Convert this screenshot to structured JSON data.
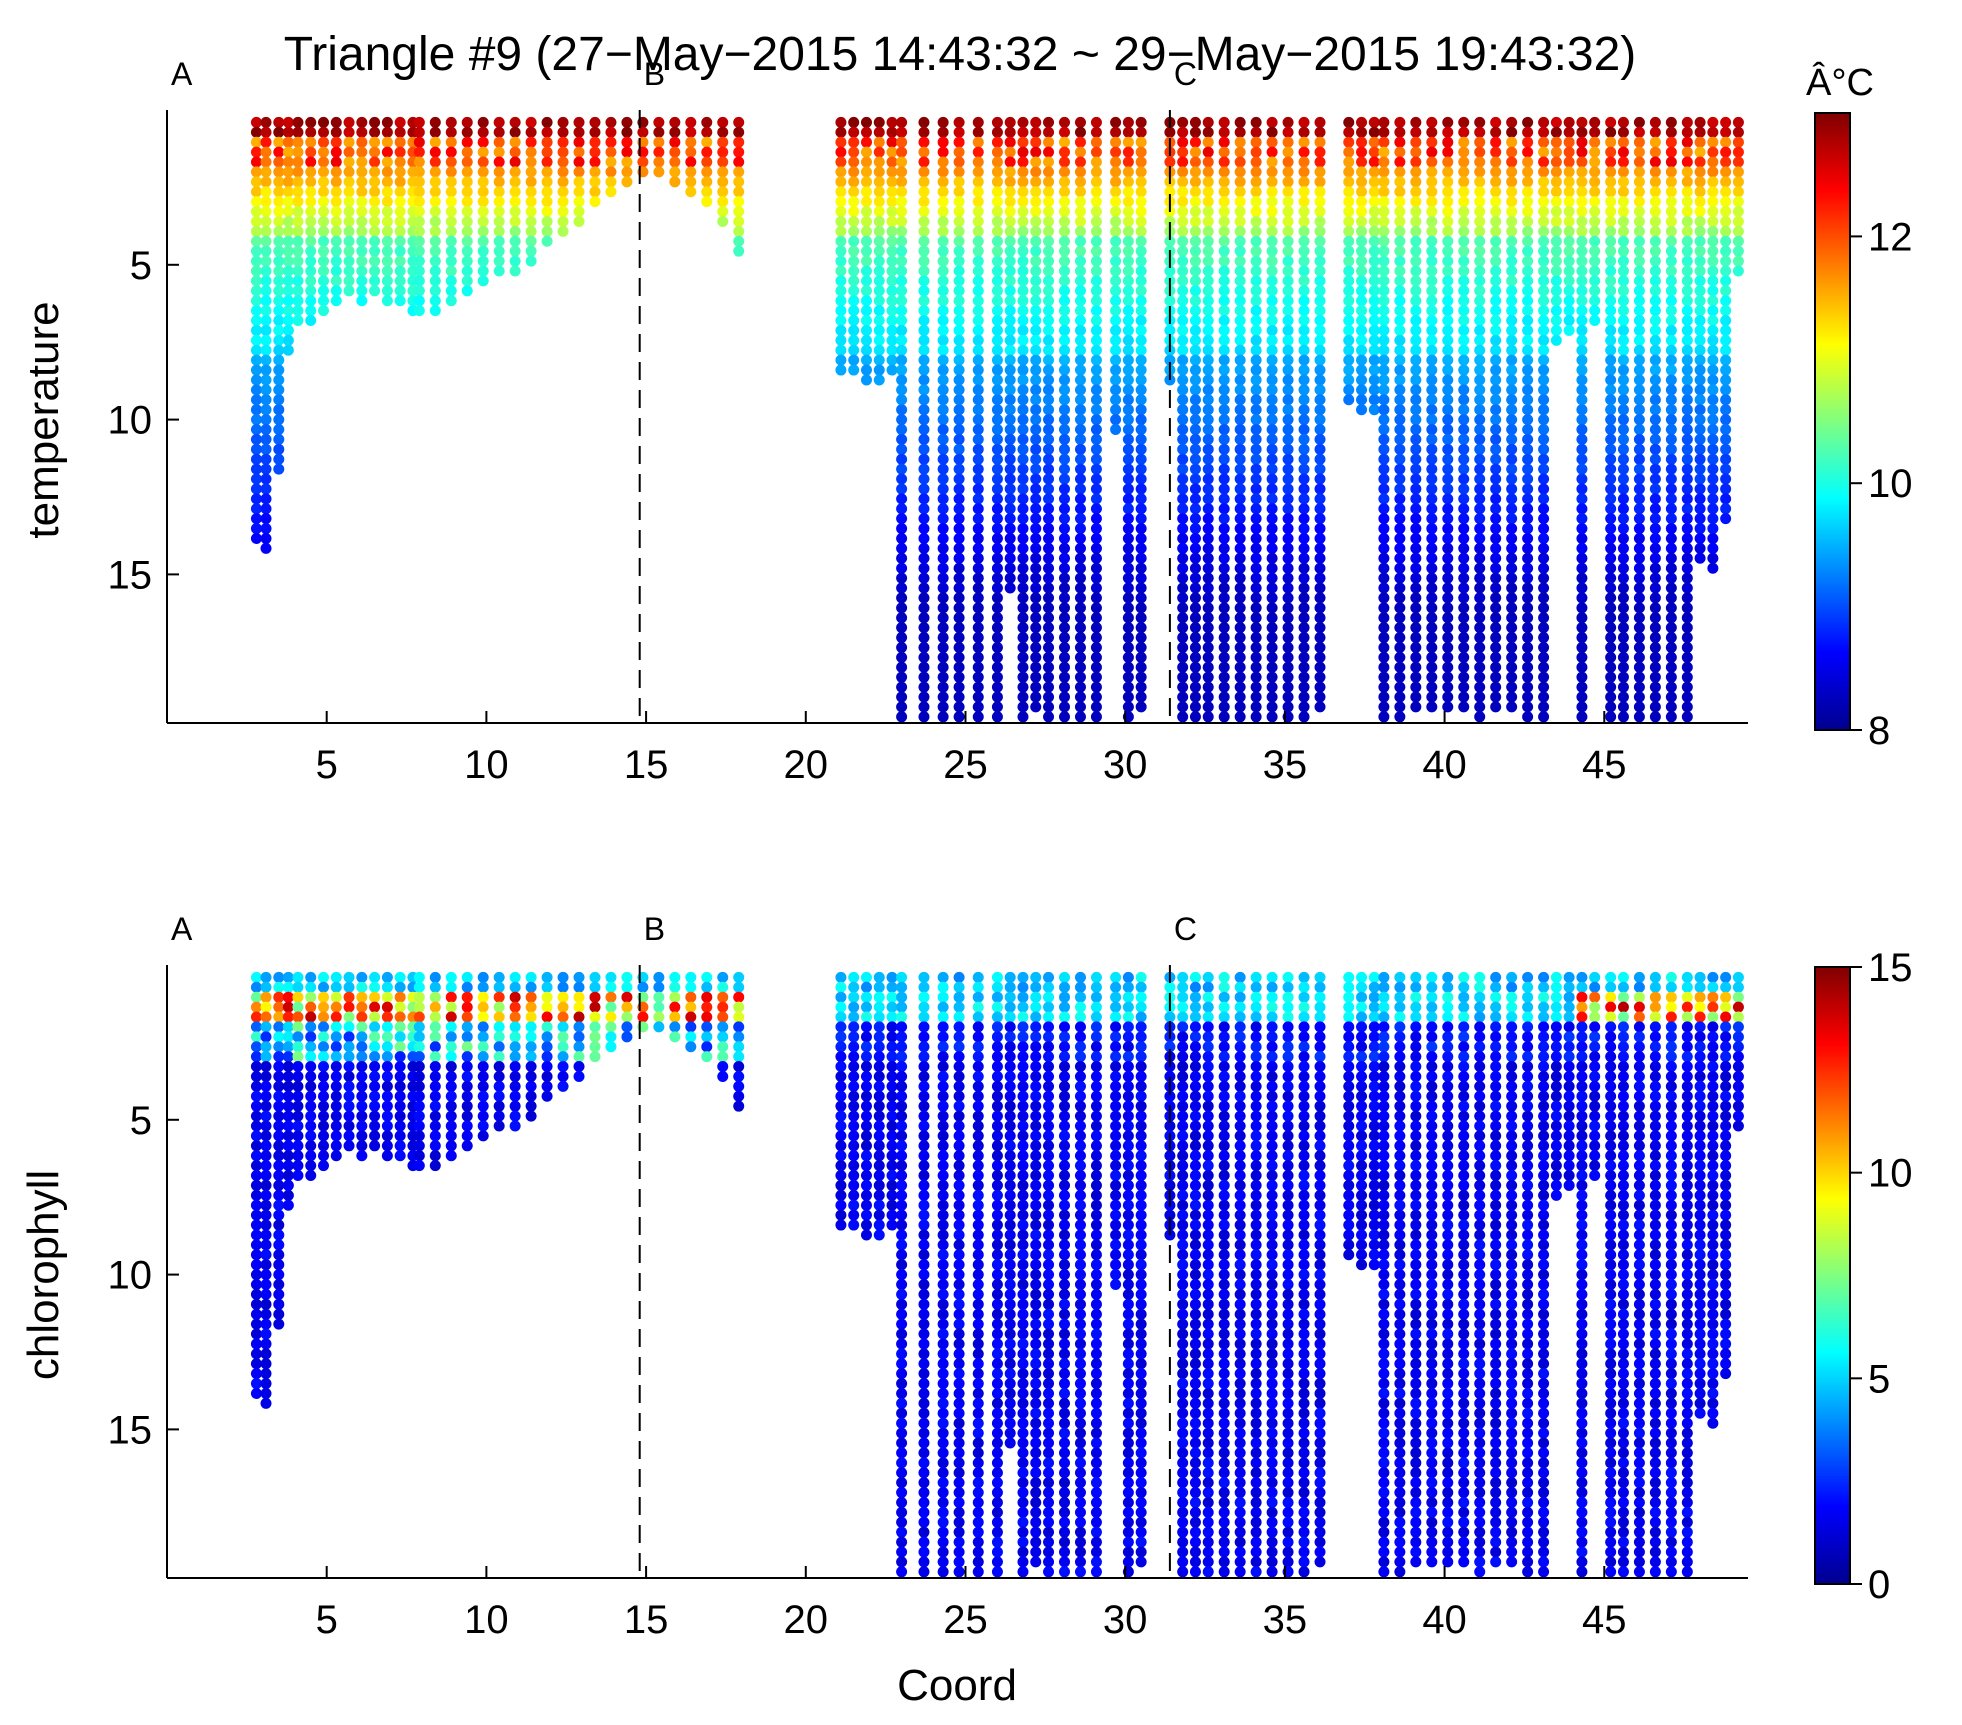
{
  "chart_data": [
    {
      "type": "scatter",
      "title": "Triangle #9 (27−May−2015 14:43:32 ~ 29−May−2015 19:43:32)",
      "ylabel": "temperature",
      "xlabel": "",
      "xlim": [
        0,
        49.5
      ],
      "ylim": [
        19.8,
        0
      ],
      "y_inverted": true,
      "xticks": [
        "5",
        "10",
        "15",
        "20",
        "25",
        "30",
        "35",
        "40",
        "45"
      ],
      "yticks": [
        "5",
        "10",
        "15"
      ],
      "section_markers": [
        {
          "label": "A",
          "x": 0
        },
        {
          "label": "B",
          "x": 14.8
        },
        {
          "label": "C",
          "x": 31.4
        }
      ],
      "colorbar": {
        "unit": "Â°C",
        "min": 8,
        "max": 13,
        "ticks": [
          "8",
          "10",
          "12"
        ],
        "colormap": "jet"
      },
      "grid": false,
      "profiles": [
        {
          "x": 2.8,
          "bottom": 14.0
        },
        {
          "x": 3.1,
          "bottom": 14.2
        },
        {
          "x": 3.5,
          "bottom": 11.8
        },
        {
          "x": 3.8,
          "bottom": 8.0
        },
        {
          "x": 4.1,
          "bottom": 7.0
        },
        {
          "x": 4.5,
          "bottom": 6.8
        },
        {
          "x": 4.9,
          "bottom": 6.6
        },
        {
          "x": 5.3,
          "bottom": 6.4
        },
        {
          "x": 5.7,
          "bottom": 6.0
        },
        {
          "x": 6.1,
          "bottom": 6.2
        },
        {
          "x": 6.5,
          "bottom": 6.0
        },
        {
          "x": 6.9,
          "bottom": 6.3
        },
        {
          "x": 7.3,
          "bottom": 6.3
        },
        {
          "x": 7.7,
          "bottom": 6.5
        },
        {
          "x": 7.9,
          "bottom": 6.6
        },
        {
          "x": 8.4,
          "bottom": 6.5
        },
        {
          "x": 8.9,
          "bottom": 6.2
        },
        {
          "x": 9.4,
          "bottom": 6.0
        },
        {
          "x": 9.9,
          "bottom": 5.8
        },
        {
          "x": 10.4,
          "bottom": 5.5
        },
        {
          "x": 10.9,
          "bottom": 5.2
        },
        {
          "x": 11.4,
          "bottom": 4.9
        },
        {
          "x": 11.9,
          "bottom": 4.5
        },
        {
          "x": 12.4,
          "bottom": 4.0
        },
        {
          "x": 12.9,
          "bottom": 3.6
        },
        {
          "x": 13.4,
          "bottom": 3.1
        },
        {
          "x": 13.9,
          "bottom": 2.7
        },
        {
          "x": 14.4,
          "bottom": 2.4
        },
        {
          "x": 14.9,
          "bottom": 2.3
        },
        {
          "x": 15.4,
          "bottom": 2.3
        },
        {
          "x": 15.9,
          "bottom": 2.4
        },
        {
          "x": 16.4,
          "bottom": 2.7
        },
        {
          "x": 16.9,
          "bottom": 3.1
        },
        {
          "x": 17.4,
          "bottom": 3.6
        },
        {
          "x": 17.9,
          "bottom": 4.6
        },
        {
          "x": 21.1,
          "bottom": 8.4
        },
        {
          "x": 21.5,
          "bottom": 8.6
        },
        {
          "x": 21.9,
          "bottom": 8.8
        },
        {
          "x": 22.3,
          "bottom": 9.0
        },
        {
          "x": 22.7,
          "bottom": 8.6
        },
        {
          "x": 23.0,
          "bottom": 19.7
        },
        {
          "x": 23.7,
          "bottom": 19.6
        },
        {
          "x": 24.3,
          "bottom": 19.7
        },
        {
          "x": 24.8,
          "bottom": 19.6
        },
        {
          "x": 25.4,
          "bottom": 19.7
        },
        {
          "x": 26.0,
          "bottom": 19.6
        },
        {
          "x": 26.4,
          "bottom": 15.5
        },
        {
          "x": 26.8,
          "bottom": 19.6
        },
        {
          "x": 27.2,
          "bottom": 19.5
        },
        {
          "x": 27.6,
          "bottom": 19.6
        },
        {
          "x": 28.1,
          "bottom": 19.6
        },
        {
          "x": 28.6,
          "bottom": 19.6
        },
        {
          "x": 29.1,
          "bottom": 19.7
        },
        {
          "x": 29.7,
          "bottom": 10.5
        },
        {
          "x": 30.1,
          "bottom": 19.6
        },
        {
          "x": 30.5,
          "bottom": 19.5
        },
        {
          "x": 31.4,
          "bottom": 9.0
        },
        {
          "x": 31.8,
          "bottom": 19.6
        },
        {
          "x": 32.2,
          "bottom": 19.6
        },
        {
          "x": 32.6,
          "bottom": 19.6
        },
        {
          "x": 33.1,
          "bottom": 19.6
        },
        {
          "x": 33.6,
          "bottom": 19.6
        },
        {
          "x": 34.1,
          "bottom": 19.6
        },
        {
          "x": 34.6,
          "bottom": 19.6
        },
        {
          "x": 35.1,
          "bottom": 19.6
        },
        {
          "x": 35.6,
          "bottom": 19.6
        },
        {
          "x": 36.1,
          "bottom": 19.5
        },
        {
          "x": 37.0,
          "bottom": 9.6
        },
        {
          "x": 37.4,
          "bottom": 9.8
        },
        {
          "x": 37.8,
          "bottom": 9.9
        },
        {
          "x": 38.1,
          "bottom": 19.6
        },
        {
          "x": 38.6,
          "bottom": 19.6
        },
        {
          "x": 39.1,
          "bottom": 19.5
        },
        {
          "x": 39.6,
          "bottom": 19.5
        },
        {
          "x": 40.1,
          "bottom": 19.5
        },
        {
          "x": 40.6,
          "bottom": 19.5
        },
        {
          "x": 41.1,
          "bottom": 19.6
        },
        {
          "x": 41.6,
          "bottom": 19.5
        },
        {
          "x": 42.1,
          "bottom": 19.5
        },
        {
          "x": 42.6,
          "bottom": 19.6
        },
        {
          "x": 43.1,
          "bottom": 19.6
        },
        {
          "x": 43.5,
          "bottom": 7.6
        },
        {
          "x": 43.9,
          "bottom": 7.3
        },
        {
          "x": 44.3,
          "bottom": 19.6
        },
        {
          "x": 44.7,
          "bottom": 7.0
        },
        {
          "x": 45.2,
          "bottom": 19.6
        },
        {
          "x": 45.6,
          "bottom": 19.6
        },
        {
          "x": 46.1,
          "bottom": 19.6
        },
        {
          "x": 46.6,
          "bottom": 19.6
        },
        {
          "x": 47.1,
          "bottom": 19.6
        },
        {
          "x": 47.6,
          "bottom": 19.6
        },
        {
          "x": 48.0,
          "bottom": 14.7
        },
        {
          "x": 48.4,
          "bottom": 15.0
        },
        {
          "x": 48.8,
          "bottom": 13.2
        },
        {
          "x": 49.2,
          "bottom": 5.5
        }
      ]
    },
    {
      "type": "scatter",
      "title": "",
      "ylabel": "chlorophyll",
      "xlabel": "Coord",
      "xlim": [
        0,
        49.5
      ],
      "ylim": [
        19.8,
        0
      ],
      "y_inverted": true,
      "xticks": [
        "5",
        "10",
        "15",
        "20",
        "25",
        "30",
        "35",
        "40",
        "45"
      ],
      "yticks": [
        "5",
        "10",
        "15"
      ],
      "section_markers": [
        {
          "label": "A",
          "x": 0
        },
        {
          "label": "B",
          "x": 14.8
        },
        {
          "label": "C",
          "x": 31.4
        }
      ],
      "colorbar": {
        "unit": "",
        "min": 0,
        "max": 15,
        "ticks": [
          "0",
          "5",
          "10",
          "15"
        ],
        "colormap": "jet"
      },
      "grid": false,
      "profiles": "same stations as temperature panel"
    }
  ]
}
